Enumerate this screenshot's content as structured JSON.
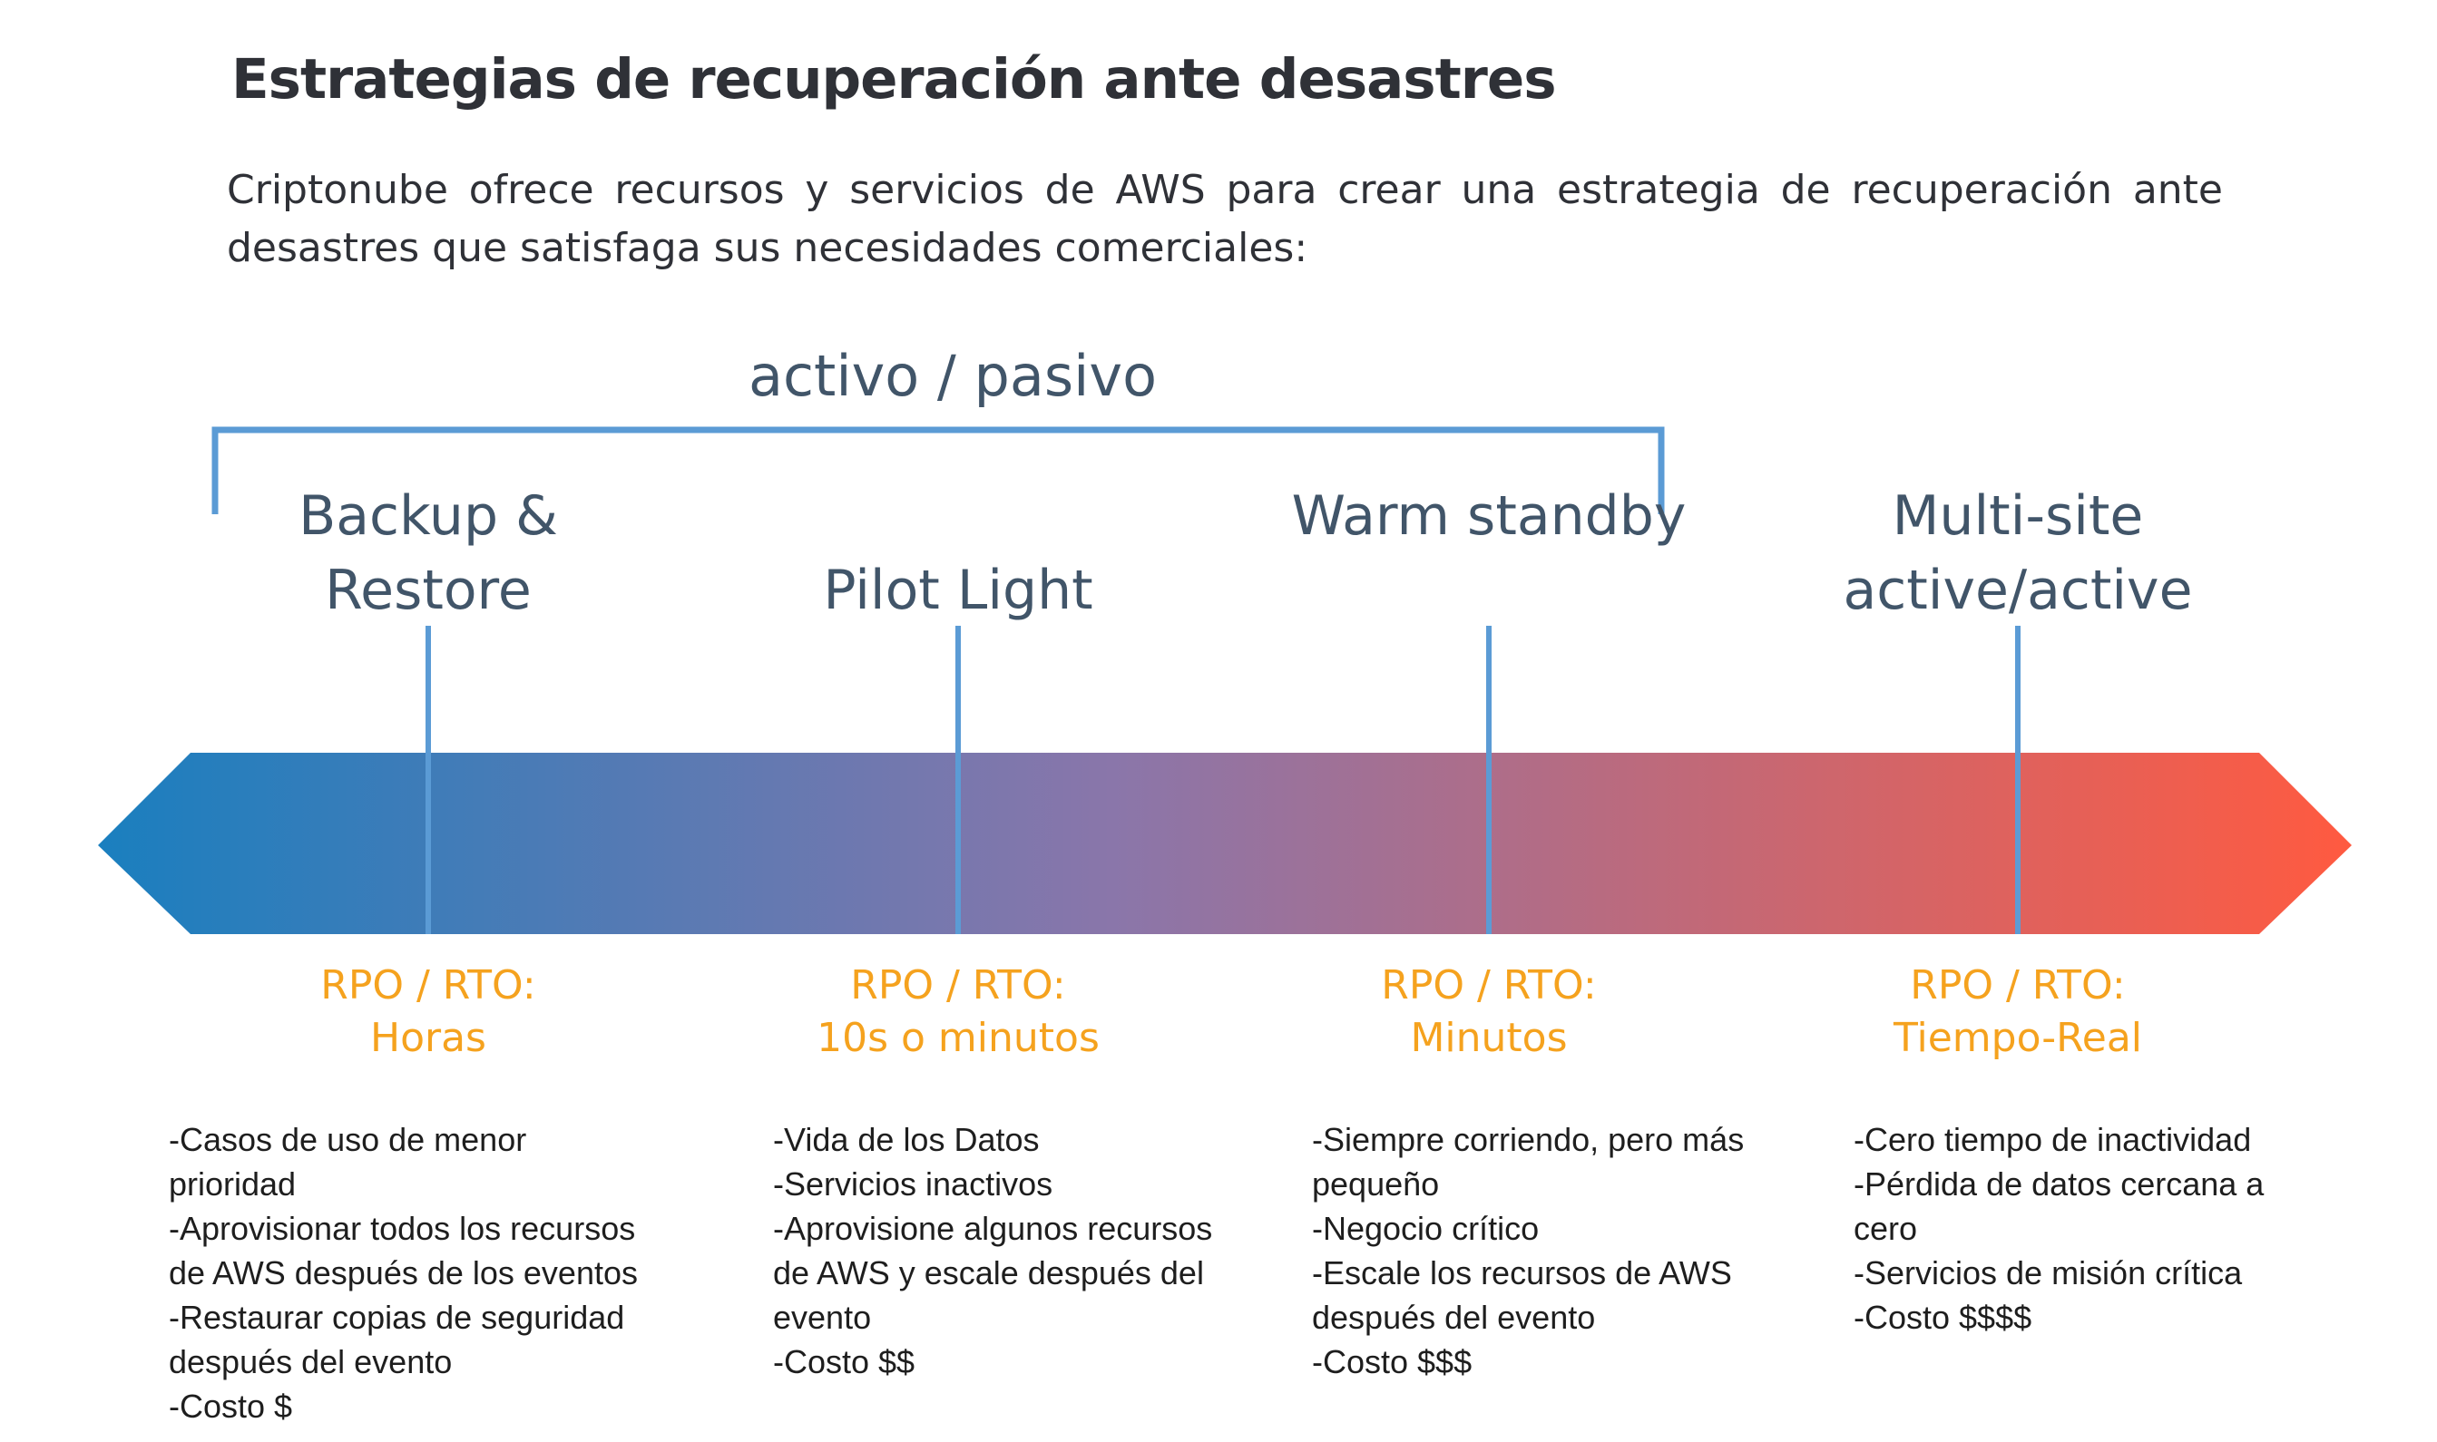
{
  "header": {
    "title": "Estrategias de recuperación ante desastres",
    "intro": "Criptonube ofrece recursos y servicios de AWS para crear una estrategia de recuperación ante desastres que satisfaga sus necesidades comerciales:"
  },
  "diagram": {
    "bracket_label": "activo / pasivo",
    "colors": {
      "arrow_start": "#1a7fbf",
      "arrow_mid": "#8a76aa",
      "arrow_end": "#ff5a40",
      "connector": "#5b9bd5",
      "bracket": "#5b9bd5",
      "strategy_text": "#415569",
      "rpo_text": "#f5a21e"
    },
    "strategies": [
      {
        "name": "Backup & Restore",
        "rpo_label": "RPO / RTO:",
        "rpo_value": "Horas",
        "details": [
          "-Casos de uso de menor prioridad",
          "-Aprovisionar todos los recursos",
          "de AWS después de los eventos",
          "-Restaurar copias de seguridad",
          "después del evento",
          "-Costo $"
        ]
      },
      {
        "name": "Pilot Light",
        "rpo_label": "RPO / RTO:",
        "rpo_value": "10s o minutos",
        "details": [
          "-Vida de los Datos",
          "-Servicios inactivos",
          "-Aprovisione algunos recursos",
          "de AWS y escale después del",
          "evento",
          "-Costo $$"
        ]
      },
      {
        "name": "Warm standby",
        "rpo_label": "RPO / RTO:",
        "rpo_value": "Minutos",
        "details": [
          "-Siempre corriendo, pero más",
          "pequeño",
          "-Negocio crítico",
          "-Escale los recursos de AWS",
          "después del evento",
          "-Costo $$$"
        ]
      },
      {
        "name": "Multi-site active/active",
        "rpo_label": "RPO / RTO:",
        "rpo_value": "Tiempo-Real",
        "details": [
          "-Cero tiempo de inactividad",
          "-Pérdida de datos cercana a",
          "cero",
          "-Servicios de misión crítica",
          "-Costo $$$$"
        ]
      }
    ]
  }
}
